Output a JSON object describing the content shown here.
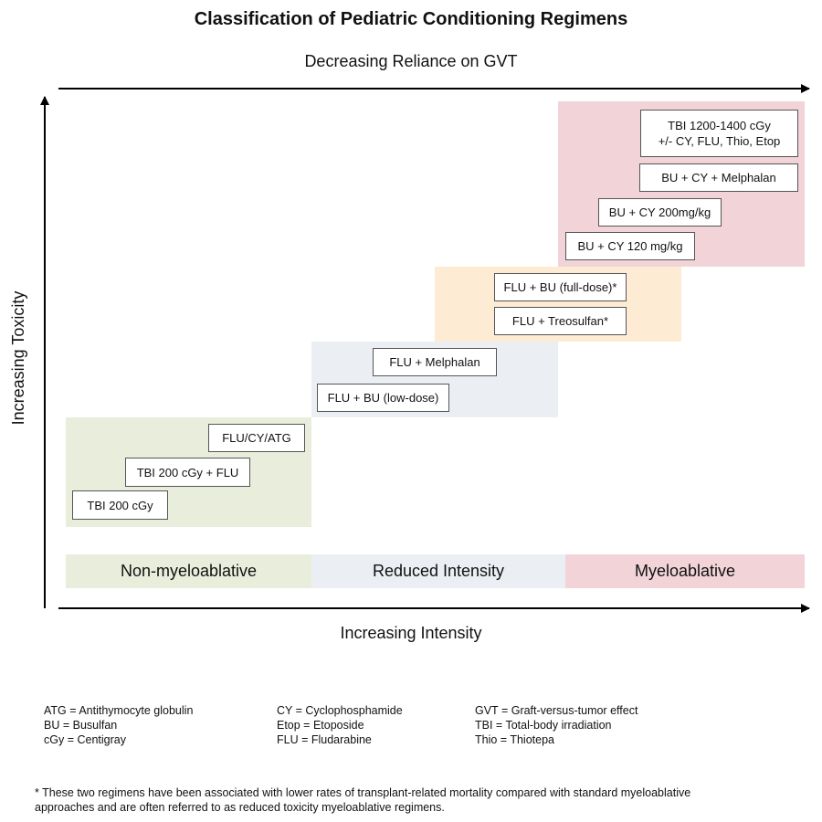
{
  "title": "Classification of Pediatric Conditioning Regimens",
  "axes": {
    "top_label": "Decreasing Reliance on GVT",
    "bottom_label": "Increasing Intensity",
    "left_label": "Increasing Toxicity"
  },
  "colors": {
    "non_myeloablative": "#e9eedc",
    "reduced_intensity": "#ebeff3",
    "reduced_toxicity": "#fdebd3",
    "myeloablative": "#f1d3d8"
  },
  "regimens": {
    "tbi_200": "TBI 200 cGy",
    "tbi_200_flu": "TBI 200 cGy + FLU",
    "flu_cy_atg": "FLU/CY/ATG",
    "flu_bu_low": "FLU + BU (low-dose)",
    "flu_mel": "FLU + Melphalan",
    "flu_treo": "FLU + Treosulfan*",
    "flu_bu_full": "FLU + BU (full-dose)*",
    "bu_cy_120": "BU + CY 120 mg/kg",
    "bu_cy_200": "BU + CY 200mg/kg",
    "bu_cy_mel": "BU + CY + Melphalan",
    "tbi_1200": "TBI 1200-1400 cGy\n+/- CY, FLU, Thio, Etop"
  },
  "bands": {
    "non_myeloablative": "Non-myeloablative",
    "reduced_intensity": "Reduced Intensity",
    "myeloablative": "Myeloablative"
  },
  "legend": {
    "col1": [
      "ATG = Antithymocyte globulin",
      "BU = Busulfan",
      "cGy = Centigray"
    ],
    "col2": [
      "CY = Cyclophosphamide",
      "Etop = Etoposide",
      "FLU = Fludarabine"
    ],
    "col3": [
      "GVT = Graft-versus-tumor effect",
      "TBI = Total-body irradiation",
      "Thio = Thiotepa"
    ]
  },
  "footnote": "* These two regimens  have been associated with lower rates of transplant-related mortality compared with standard myeloablative approaches and are often referred to as reduced toxicity myeloablative regimens."
}
